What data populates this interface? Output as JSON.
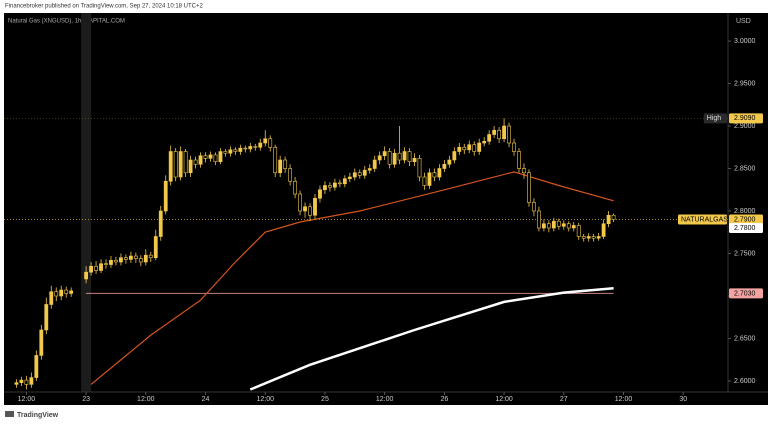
{
  "publisher": "Financebroker published on TradingView.com, Sep 27, 2024 10:18 UTC+2",
  "footer": "TradingView",
  "chart_data": {
    "type": "candlestick",
    "title": "Natural Gas (XNGUSD), 1h, CAPITAL.COM",
    "currency": "USD",
    "color": "#f2c94c",
    "x": [
      -14,
      -13,
      -12,
      -11,
      -10,
      -9,
      -8,
      -7,
      -6,
      -5,
      -4,
      -3,
      0,
      1,
      2,
      3,
      4,
      5,
      6,
      7,
      8,
      9,
      10,
      11,
      12,
      13,
      14,
      15,
      16,
      17,
      18,
      19,
      20,
      21,
      22,
      23,
      24,
      25,
      26,
      27,
      28,
      29,
      30,
      31,
      32,
      33,
      34,
      35,
      36,
      37,
      38,
      39,
      40,
      41,
      42,
      43,
      44,
      45,
      46,
      47,
      48,
      49,
      50,
      51,
      52,
      53,
      54,
      55,
      56,
      57,
      58,
      59,
      60,
      61,
      62,
      63,
      64,
      65,
      66,
      67,
      68,
      69,
      70,
      71,
      72,
      73,
      74,
      75,
      76,
      77,
      78,
      79,
      80,
      81,
      82,
      83,
      84,
      85,
      86,
      87,
      88,
      89,
      90,
      91,
      92,
      93,
      94,
      95,
      96,
      97,
      98,
      99,
      100,
      101,
      102,
      103,
      104,
      105,
      106
    ],
    "open": [
      2.596,
      2.598,
      2.601,
      2.596,
      2.604,
      2.63,
      2.66,
      2.69,
      2.705,
      2.7,
      2.707,
      2.703,
      2.72,
      2.728,
      2.735,
      2.73,
      2.738,
      2.737,
      2.742,
      2.74,
      2.745,
      2.743,
      2.747,
      2.744,
      2.74,
      2.748,
      2.745,
      2.77,
      2.8,
      2.835,
      2.87,
      2.84,
      2.87,
      2.845,
      2.86,
      2.855,
      2.865,
      2.862,
      2.866,
      2.858,
      2.87,
      2.868,
      2.872,
      2.87,
      2.874,
      2.873,
      2.876,
      2.875,
      2.88,
      2.885,
      2.875,
      2.845,
      2.86,
      2.85,
      2.835,
      2.82,
      2.8,
      2.805,
      2.795,
      2.815,
      2.825,
      2.83,
      2.828,
      2.833,
      2.832,
      2.838,
      2.84,
      2.845,
      2.842,
      2.848,
      2.85,
      2.86,
      2.865,
      2.87,
      2.855,
      2.868,
      2.86,
      2.87,
      2.858,
      2.862,
      2.84,
      2.83,
      2.845,
      2.84,
      2.85,
      2.855,
      2.86,
      2.87,
      2.875,
      2.872,
      2.878,
      2.87,
      2.88,
      2.882,
      2.89,
      2.895,
      2.885,
      2.9,
      2.88,
      2.87,
      2.85,
      2.845,
      2.81,
      2.8,
      2.78,
      2.785,
      2.78,
      2.788,
      2.782,
      2.785,
      2.78,
      2.783,
      2.77,
      2.768,
      2.77,
      2.768,
      2.77,
      2.785,
      2.795
    ],
    "high": [
      2.602,
      2.605,
      2.606,
      2.61,
      2.636,
      2.666,
      2.698,
      2.712,
      2.71,
      2.712,
      2.711,
      2.71,
      2.735,
      2.74,
      2.741,
      2.743,
      2.743,
      2.747,
      2.746,
      2.75,
      2.749,
      2.752,
      2.751,
      2.748,
      2.755,
      2.752,
      2.778,
      2.806,
      2.842,
      2.877,
      2.874,
      2.876,
      2.873,
      2.865,
      2.864,
      2.869,
      2.869,
      2.87,
      2.869,
      2.874,
      2.873,
      2.876,
      2.875,
      2.878,
      2.877,
      2.88,
      2.879,
      2.885,
      2.895,
      2.889,
      2.878,
      2.865,
      2.864,
      2.855,
      2.84,
      2.824,
      2.81,
      2.809,
      2.82,
      2.83,
      2.835,
      2.834,
      2.838,
      2.837,
      2.842,
      2.845,
      2.85,
      2.849,
      2.853,
      2.855,
      2.865,
      2.87,
      2.876,
      2.874,
      2.873,
      2.9,
      2.875,
      2.874,
      2.868,
      2.866,
      2.845,
      2.85,
      2.85,
      2.855,
      2.86,
      2.865,
      2.875,
      2.88,
      2.879,
      2.883,
      2.882,
      2.885,
      2.887,
      2.895,
      2.9,
      2.899,
      2.909,
      2.904,
      2.885,
      2.874,
      2.856,
      2.849,
      2.815,
      2.805,
      2.79,
      2.789,
      2.792,
      2.791,
      2.789,
      2.788,
      2.787,
      2.786,
      2.773,
      2.774,
      2.773,
      2.774,
      2.79,
      2.8,
      2.797
    ],
    "low": [
      2.592,
      2.594,
      2.59,
      2.592,
      2.6,
      2.625,
      2.655,
      2.685,
      2.694,
      2.695,
      2.698,
      2.699,
      2.715,
      2.724,
      2.726,
      2.727,
      2.732,
      2.733,
      2.736,
      2.736,
      2.738,
      2.739,
      2.739,
      2.735,
      2.736,
      2.74,
      2.742,
      2.765,
      2.796,
      2.83,
      2.835,
      2.836,
      2.84,
      2.84,
      2.85,
      2.851,
      2.857,
      2.858,
      2.854,
      2.855,
      2.864,
      2.864,
      2.866,
      2.866,
      2.869,
      2.869,
      2.871,
      2.871,
      2.876,
      2.87,
      2.84,
      2.84,
      2.845,
      2.83,
      2.815,
      2.795,
      2.792,
      2.788,
      2.79,
      2.81,
      2.82,
      2.823,
      2.824,
      2.828,
      2.828,
      2.834,
      2.836,
      2.838,
      2.838,
      2.844,
      2.846,
      2.855,
      2.86,
      2.85,
      2.851,
      2.855,
      2.856,
      2.853,
      2.853,
      2.835,
      2.825,
      2.826,
      2.835,
      2.836,
      2.846,
      2.851,
      2.856,
      2.866,
      2.867,
      2.868,
      2.865,
      2.866,
      2.876,
      2.878,
      2.886,
      2.88,
      2.881,
      2.875,
      2.865,
      2.845,
      2.838,
      2.805,
      2.794,
      2.776,
      2.776,
      2.775,
      2.776,
      2.778,
      2.778,
      2.776,
      2.776,
      2.766,
      2.764,
      2.764,
      2.764,
      2.765,
      2.767,
      2.781,
      2.787
    ],
    "close": [
      2.598,
      2.601,
      2.596,
      2.604,
      2.63,
      2.66,
      2.69,
      2.705,
      2.7,
      2.707,
      2.703,
      2.706,
      2.728,
      2.735,
      2.73,
      2.738,
      2.737,
      2.742,
      2.74,
      2.745,
      2.743,
      2.747,
      2.744,
      2.74,
      2.748,
      2.745,
      2.77,
      2.8,
      2.835,
      2.87,
      2.84,
      2.87,
      2.845,
      2.86,
      2.855,
      2.865,
      2.862,
      2.866,
      2.858,
      2.87,
      2.868,
      2.872,
      2.87,
      2.874,
      2.873,
      2.876,
      2.875,
      2.88,
      2.885,
      2.875,
      2.845,
      2.86,
      2.85,
      2.835,
      2.82,
      2.8,
      2.805,
      2.795,
      2.815,
      2.825,
      2.83,
      2.828,
      2.833,
      2.832,
      2.838,
      2.84,
      2.845,
      2.842,
      2.848,
      2.85,
      2.86,
      2.865,
      2.87,
      2.855,
      2.868,
      2.86,
      2.87,
      2.858,
      2.862,
      2.84,
      2.83,
      2.845,
      2.84,
      2.85,
      2.855,
      2.86,
      2.87,
      2.875,
      2.872,
      2.878,
      2.87,
      2.88,
      2.882,
      2.89,
      2.895,
      2.885,
      2.9,
      2.88,
      2.87,
      2.85,
      2.845,
      2.81,
      2.8,
      2.78,
      2.785,
      2.78,
      2.788,
      2.782,
      2.785,
      2.78,
      2.783,
      2.77,
      2.768,
      2.77,
      2.768,
      2.77,
      2.785,
      2.795,
      2.79
    ],
    "lines": [
      {
        "color": "#d4541e",
        "x": [
          1,
          13,
          23,
          30,
          36,
          43,
          55,
          72,
          86,
          95,
          106
        ],
        "values": [
          2.596,
          2.654,
          2.695,
          2.74,
          2.775,
          2.787,
          2.8,
          2.825,
          2.846,
          2.83,
          2.812
        ]
      },
      {
        "color": "#ffffff",
        "x": [
          33,
          45,
          66,
          84,
          96,
          106
        ],
        "values": [
          2.59,
          2.619,
          2.66,
          2.693,
          2.704,
          2.709
        ]
      }
    ],
    "xlim": [
      -16.5,
      129
    ],
    "xticks": [
      {
        "value": -12,
        "label": "12:00"
      },
      {
        "value": 0,
        "label": "23"
      },
      {
        "value": 12,
        "label": "12:00"
      },
      {
        "value": 24,
        "label": "24"
      },
      {
        "value": 36,
        "label": "12:00"
      },
      {
        "value": 48,
        "label": "25"
      },
      {
        "value": 60,
        "label": "12:00"
      },
      {
        "value": 72,
        "label": "26"
      },
      {
        "value": 84,
        "label": "12:00"
      },
      {
        "value": 96,
        "label": "27"
      },
      {
        "value": 108,
        "label": "12:00"
      },
      {
        "value": 120,
        "label": "30"
      }
    ],
    "ylim": [
      2.587,
      3.033
    ],
    "yticks": [
      {
        "value": 2.6,
        "label": "2.6000"
      },
      {
        "value": 2.65,
        "label": "2.6500"
      },
      {
        "value": 2.7,
        "label": "2.7000"
      },
      {
        "value": 2.75,
        "label": "2.7500"
      },
      {
        "value": 2.8,
        "label": "2.8000"
      },
      {
        "value": 2.85,
        "label": "2.8500"
      },
      {
        "value": 2.9,
        "label": "2.9000"
      },
      {
        "value": 2.95,
        "label": "2.9500"
      },
      {
        "value": 3.0,
        "label": "3.0000"
      }
    ],
    "grid": false,
    "price_labels": [
      {
        "name": "High",
        "value": 2.909,
        "value_label": "2.9090",
        "color": "#f2c94c"
      },
      {
        "name": "NATURALGAS",
        "value": 2.79,
        "value_label": "2.7900",
        "countdown": "41:10",
        "color": "#f2c94c"
      },
      {
        "value": 2.78,
        "value_label": "2.7800",
        "color": "#ffffff"
      },
      {
        "value": 2.703,
        "value_label": "2.7030",
        "color": "#f4a3a3"
      }
    ]
  }
}
